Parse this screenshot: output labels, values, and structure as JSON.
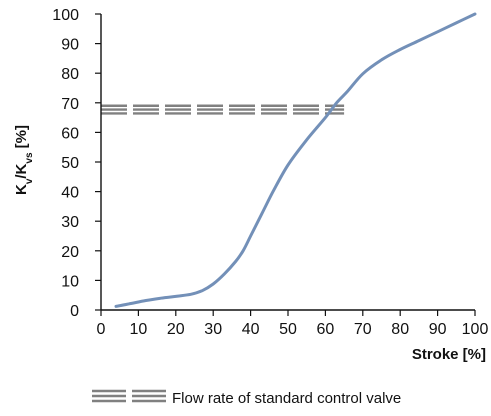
{
  "chart_data": {
    "type": "line",
    "xlabel": "Stroke [%]",
    "ylabel": {
      "k1": "K",
      "s1": "v",
      "sep": "/K",
      "s2": "vs",
      "unit": " [%]"
    },
    "xlim": [
      0,
      100
    ],
    "ylim": [
      0,
      100
    ],
    "x_ticks": [
      0,
      10,
      20,
      30,
      40,
      50,
      60,
      70,
      80,
      90,
      100
    ],
    "y_ticks": [
      0,
      10,
      20,
      30,
      40,
      50,
      60,
      70,
      80,
      90,
      100
    ],
    "grid": false,
    "series": [
      {
        "name": "",
        "color": "#7390b8",
        "x": [
          4,
          8,
          12,
          16,
          20,
          24,
          27,
          30,
          33,
          36,
          38,
          40,
          43,
          46,
          50,
          55,
          60,
          63,
          66,
          70,
          75,
          80,
          85,
          90,
          95,
          100
        ],
        "y": [
          1.2,
          2.2,
          3.2,
          4,
          4.6,
          5.3,
          6.5,
          8.8,
          12.2,
          16.4,
          20,
          25,
          32.5,
          40,
          49,
          57.5,
          65,
          70,
          74,
          79.8,
          84.5,
          88,
          91,
          94,
          97,
          100
        ]
      }
    ],
    "band": {
      "name": "Flow rate of standard control valve",
      "x_range": [
        0,
        65
      ],
      "y_values": [
        69,
        67.7,
        66.4
      ],
      "color": "#808080"
    },
    "legend": {
      "position": "bottom-center",
      "label": "Flow rate of standard control valve"
    }
  }
}
